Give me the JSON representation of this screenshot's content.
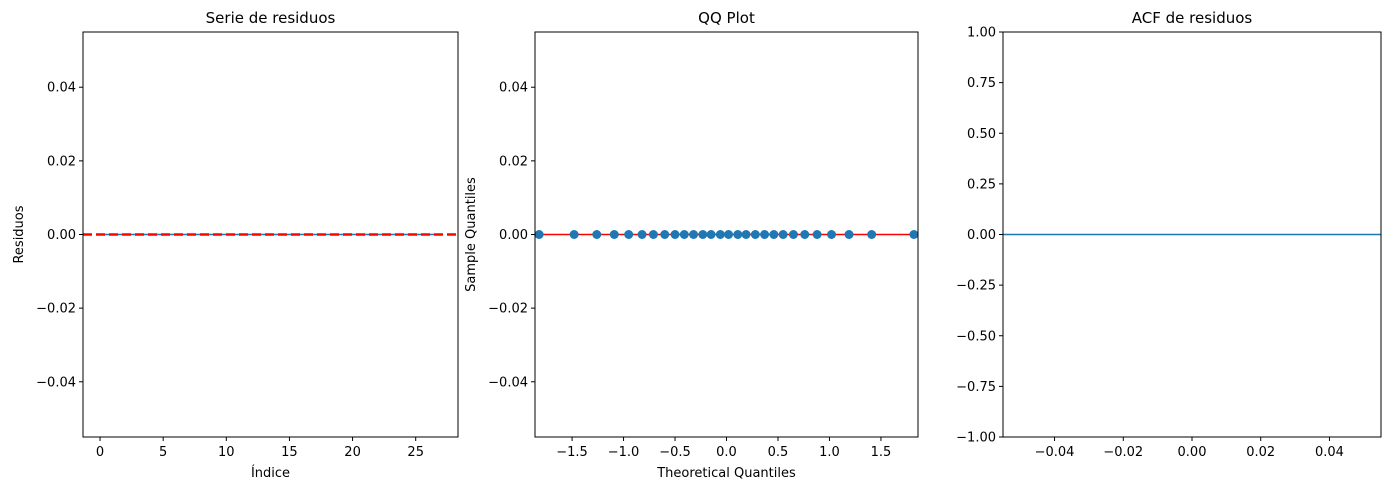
{
  "chart_data": [
    {
      "type": "line",
      "title": "Serie de residuos",
      "xlabel": "Índice",
      "ylabel": "Residuos",
      "xlim": [
        -1.35,
        28.35
      ],
      "ylim": [
        -0.055,
        0.055
      ],
      "xticks": [
        0,
        5,
        10,
        15,
        20,
        25
      ],
      "xtick_labels": [
        "0",
        "5",
        "10",
        "15",
        "20",
        "25"
      ],
      "yticks": [
        -0.04,
        -0.02,
        0.0,
        0.02,
        0.04
      ],
      "ytick_labels": [
        "−0.04",
        "−0.02",
        "0.00",
        "0.02",
        "0.04"
      ],
      "series": [
        {
          "x": [
            0,
            1,
            2,
            3,
            4,
            5,
            6,
            7,
            8,
            9,
            10,
            11,
            12,
            13,
            14,
            15,
            16,
            17,
            18,
            19,
            20,
            21,
            22,
            23,
            24,
            25,
            26,
            27
          ],
          "y": [
            0,
            0,
            0,
            0,
            0,
            0,
            0,
            0,
            0,
            0,
            0,
            0,
            0,
            0,
            0,
            0,
            0,
            0,
            0,
            0,
            0,
            0,
            0,
            0,
            0,
            0,
            0,
            0
          ],
          "color": "#1f77b4"
        }
      ],
      "hline": {
        "y": 0,
        "color": "#ff0000",
        "style": "dashed"
      }
    },
    {
      "type": "scatter",
      "title": "QQ Plot",
      "xlabel": "Theoretical Quantiles",
      "ylabel": "Sample Quantiles",
      "xlim": [
        -1.86,
        1.86
      ],
      "ylim": [
        -0.055,
        0.055
      ],
      "xticks": [
        -1.5,
        -1.0,
        -0.5,
        0.0,
        0.5,
        1.0,
        1.5
      ],
      "xtick_labels": [
        "−1.5",
        "−1.0",
        "−0.5",
        "0.0",
        "0.5",
        "1.0",
        "1.5"
      ],
      "yticks": [
        -0.04,
        -0.02,
        0.0,
        0.02,
        0.04
      ],
      "ytick_labels": [
        "−0.04",
        "−0.02",
        "0.00",
        "0.02",
        "0.04"
      ],
      "series": [
        {
          "x": [
            -1.82,
            -1.48,
            -1.26,
            -1.09,
            -0.95,
            -0.82,
            -0.71,
            -0.6,
            -0.5,
            -0.41,
            -0.32,
            -0.23,
            -0.15,
            -0.06,
            0.02,
            0.11,
            0.19,
            0.28,
            0.37,
            0.46,
            0.55,
            0.65,
            0.76,
            0.88,
            1.02,
            1.19,
            1.41,
            1.82
          ],
          "y": [
            0,
            0,
            0,
            0,
            0,
            0,
            0,
            0,
            0,
            0,
            0,
            0,
            0,
            0,
            0,
            0,
            0,
            0,
            0,
            0,
            0,
            0,
            0,
            0,
            0,
            0,
            0,
            0
          ],
          "color": "#1f77b4"
        }
      ],
      "ref_line": {
        "x": [
          -1.82,
          1.82
        ],
        "y": [
          0,
          0
        ],
        "color": "#ff0000"
      }
    },
    {
      "type": "line",
      "title": "ACF de residuos",
      "xlabel": "",
      "ylabel": "",
      "xlim": [
        -0.055,
        0.055
      ],
      "ylim": [
        -1.0,
        1.0
      ],
      "xticks": [
        -0.04,
        -0.02,
        0.0,
        0.02,
        0.04
      ],
      "xtick_labels": [
        "−0.04",
        "−0.02",
        "0.00",
        "0.02",
        "0.04"
      ],
      "yticks": [
        -1.0,
        -0.75,
        -0.5,
        -0.25,
        0.0,
        0.25,
        0.5,
        0.75,
        1.0
      ],
      "ytick_labels": [
        "−1.00",
        "−0.75",
        "−0.50",
        "−0.25",
        "0.00",
        "0.25",
        "0.50",
        "0.75",
        "1.00"
      ],
      "hline": {
        "y": 0,
        "color": "#1f77b4",
        "style": "solid"
      }
    }
  ]
}
